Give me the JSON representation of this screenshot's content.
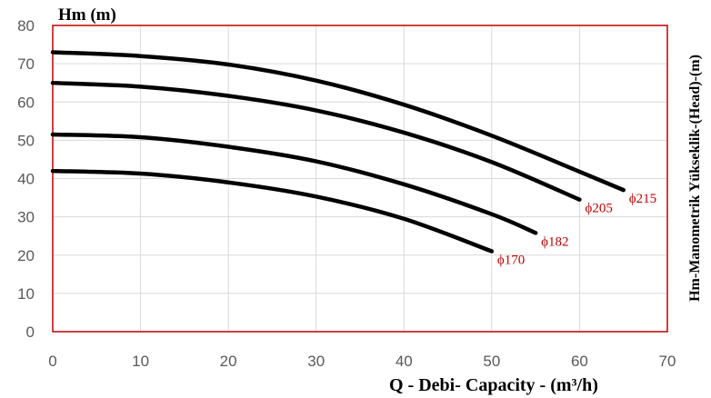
{
  "chart_data": {
    "type": "line",
    "title": "",
    "xlabel": "Q - Debi- Capacity - (m³/h)",
    "ylabel": "Hm (m)",
    "ylabel_right": "Hm-Manometrik Yükseklik-(Head)-(m)",
    "xlim": [
      0,
      70
    ],
    "ylim": [
      0,
      80
    ],
    "x_ticks": [
      "0",
      "10",
      "20",
      "30",
      "40",
      "50",
      "60",
      "70"
    ],
    "y_ticks": [
      "0",
      "10",
      "20",
      "30",
      "40",
      "50",
      "60",
      "70",
      "80"
    ],
    "grid": true,
    "colors": {
      "curve": "#000000",
      "grid": "#d9d9d9",
      "frame": "#c00000",
      "label": "#c00000",
      "tick": "#595959"
    },
    "series": [
      {
        "name": "ϕ215",
        "x": [
          0,
          10,
          20,
          30,
          40,
          50,
          60,
          65
        ],
        "y": [
          73,
          72,
          69.8,
          65.6,
          59.3,
          51.2,
          41.8,
          37
        ]
      },
      {
        "name": "ϕ205",
        "x": [
          0,
          10,
          20,
          30,
          40,
          50,
          60
        ],
        "y": [
          65,
          64,
          61.6,
          57.8,
          52,
          44.3,
          34.5
        ]
      },
      {
        "name": "ϕ182",
        "x": [
          0,
          10,
          20,
          30,
          40,
          50,
          55
        ],
        "y": [
          51.5,
          50.8,
          48.3,
          44.5,
          38.5,
          30.7,
          25.8
        ]
      },
      {
        "name": "ϕ170",
        "x": [
          0,
          10,
          20,
          30,
          40,
          50
        ],
        "y": [
          42,
          41.3,
          39,
          35.3,
          29.5,
          21
        ]
      }
    ]
  }
}
